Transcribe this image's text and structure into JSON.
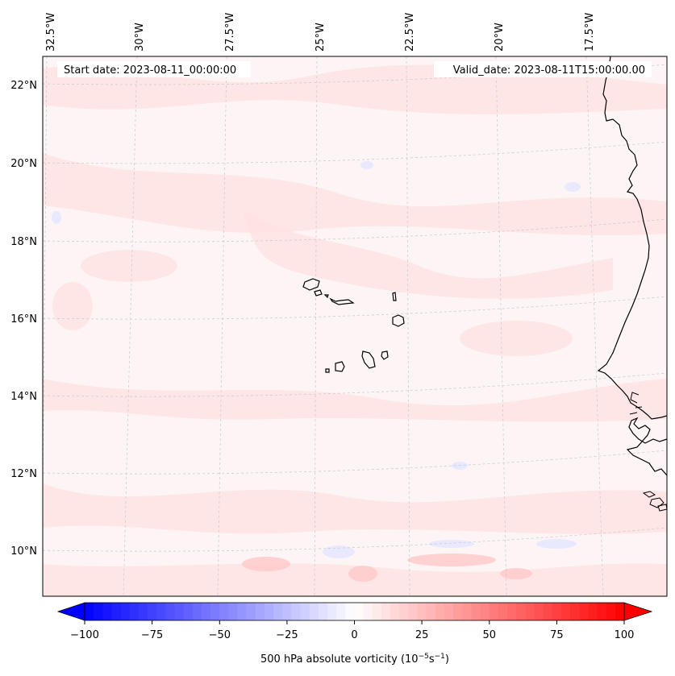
{
  "map": {
    "header": {
      "start_date": "Start date: 2023-08-11_00:00:00",
      "valid_date": "Valid_date: 2023-08-11T15:00:00.00"
    },
    "longitude_labels": [
      "32.5°W",
      "30°W",
      "27.5°W",
      "25°W",
      "22.5°W",
      "20°W",
      "17.5°W"
    ],
    "latitude_labels": [
      "22°N",
      "20°N",
      "18°N",
      "16°N",
      "14°N",
      "12°N",
      "10°N"
    ],
    "extent": {
      "lon_min": -32.7,
      "lon_max": -15.6,
      "lat_min": 8.9,
      "lat_max": 22.8
    },
    "projection": "Lambert conformal (curved graticule)",
    "gridlines": "dashed, light gray"
  },
  "colorbar": {
    "ticks": [
      "−100",
      "−75",
      "−50",
      "−25",
      "0",
      "25",
      "50",
      "75",
      "100"
    ],
    "vmin": -100,
    "vmax": 100,
    "levels": 60,
    "colormap": "bwr",
    "extend": "both",
    "label": "500 hPa absolute vorticity (10<sup>−5</sup>s<sup>−1</sup>)",
    "label_text": "500 hPa absolute vorticity (10",
    "label_exp1": "−5",
    "label_mid": "s",
    "label_exp2": "−1",
    "label_end": ")"
  },
  "colors": {
    "negative": "#0000ff",
    "zero": "#ffffff",
    "positive": "#ff0000",
    "field_background": "#fdf5f5",
    "coastline": "#000000"
  }
}
